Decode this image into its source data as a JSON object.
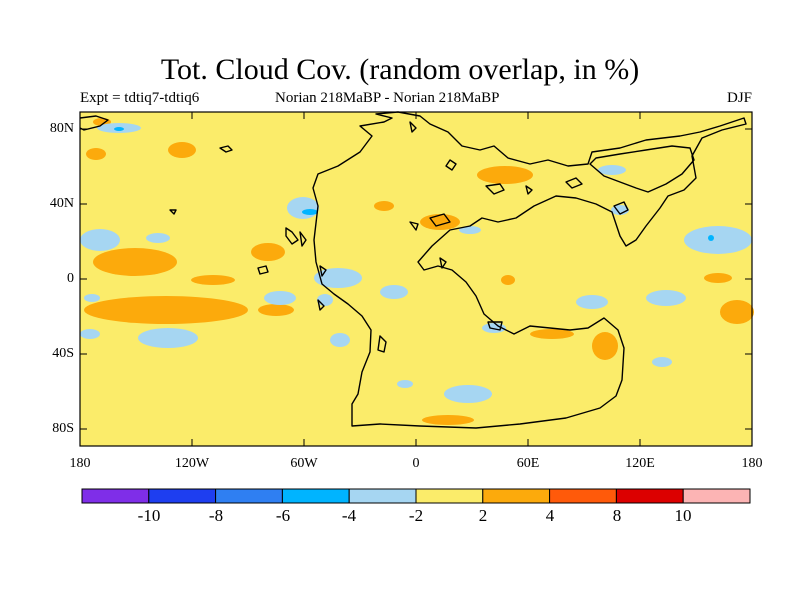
{
  "header": {
    "title": "Tot. Cloud Cov. (random overlap, in %)",
    "left_label": "Expt = tdtiq7-tdtiq6",
    "center_label": "Norian  218MaBP - Norian  218MaBP",
    "right_label": "DJF"
  },
  "axes": {
    "lat_labels": [
      "80N",
      "40N",
      "0",
      "40S",
      "80S"
    ],
    "lon_labels": [
      "180",
      "120W",
      "60W",
      "0",
      "60E",
      "120E",
      "180"
    ]
  },
  "colorbar": {
    "labels": [
      "-10",
      "-8",
      "-6",
      "-4",
      "-2",
      "2",
      "4",
      "8",
      "10"
    ],
    "colors": [
      "#7f2ee8",
      "#1e3ef0",
      "#2f7ff2",
      "#00b4ff",
      "#a6d6f2",
      "#fbec6a",
      "#fcaa0c",
      "#ff5a0a",
      "#dc0000",
      "#fcb4b4"
    ]
  },
  "map": {
    "background_color": "#fbec6a",
    "colors": {
      "orange": "#fcaa0c",
      "light_blue": "#a6d6f2",
      "blue": "#00b4ff"
    }
  }
}
